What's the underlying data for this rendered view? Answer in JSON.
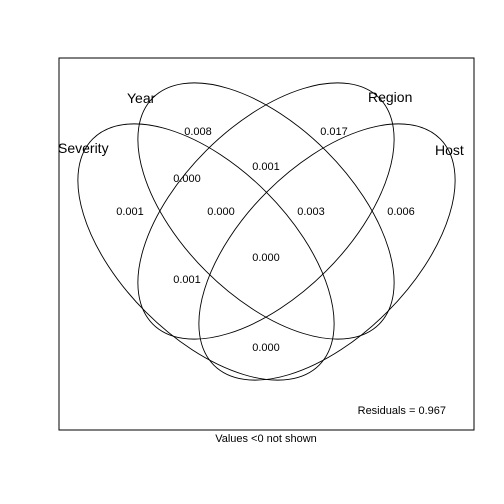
{
  "sets": {
    "severity": "Severity",
    "year": "Year",
    "region": "Region",
    "host": "Host"
  },
  "regions": {
    "severity_only": "0.001",
    "year_only": "0.008",
    "region_only": "0.017",
    "host_only": "0.006",
    "severity_year": "0.000",
    "year_region": "0.001",
    "region_host": "0.003",
    "severity_year_region": "0.000",
    "severity_host": "0.000",
    "year_region_host": "0.000",
    "severity_year_host": "0.001",
    "all_four": "0.000"
  },
  "residuals": "Residuals = 0.967",
  "footnote": "Values <0 not shown",
  "colors": {
    "stroke": "#000000",
    "background": "#ffffff"
  }
}
